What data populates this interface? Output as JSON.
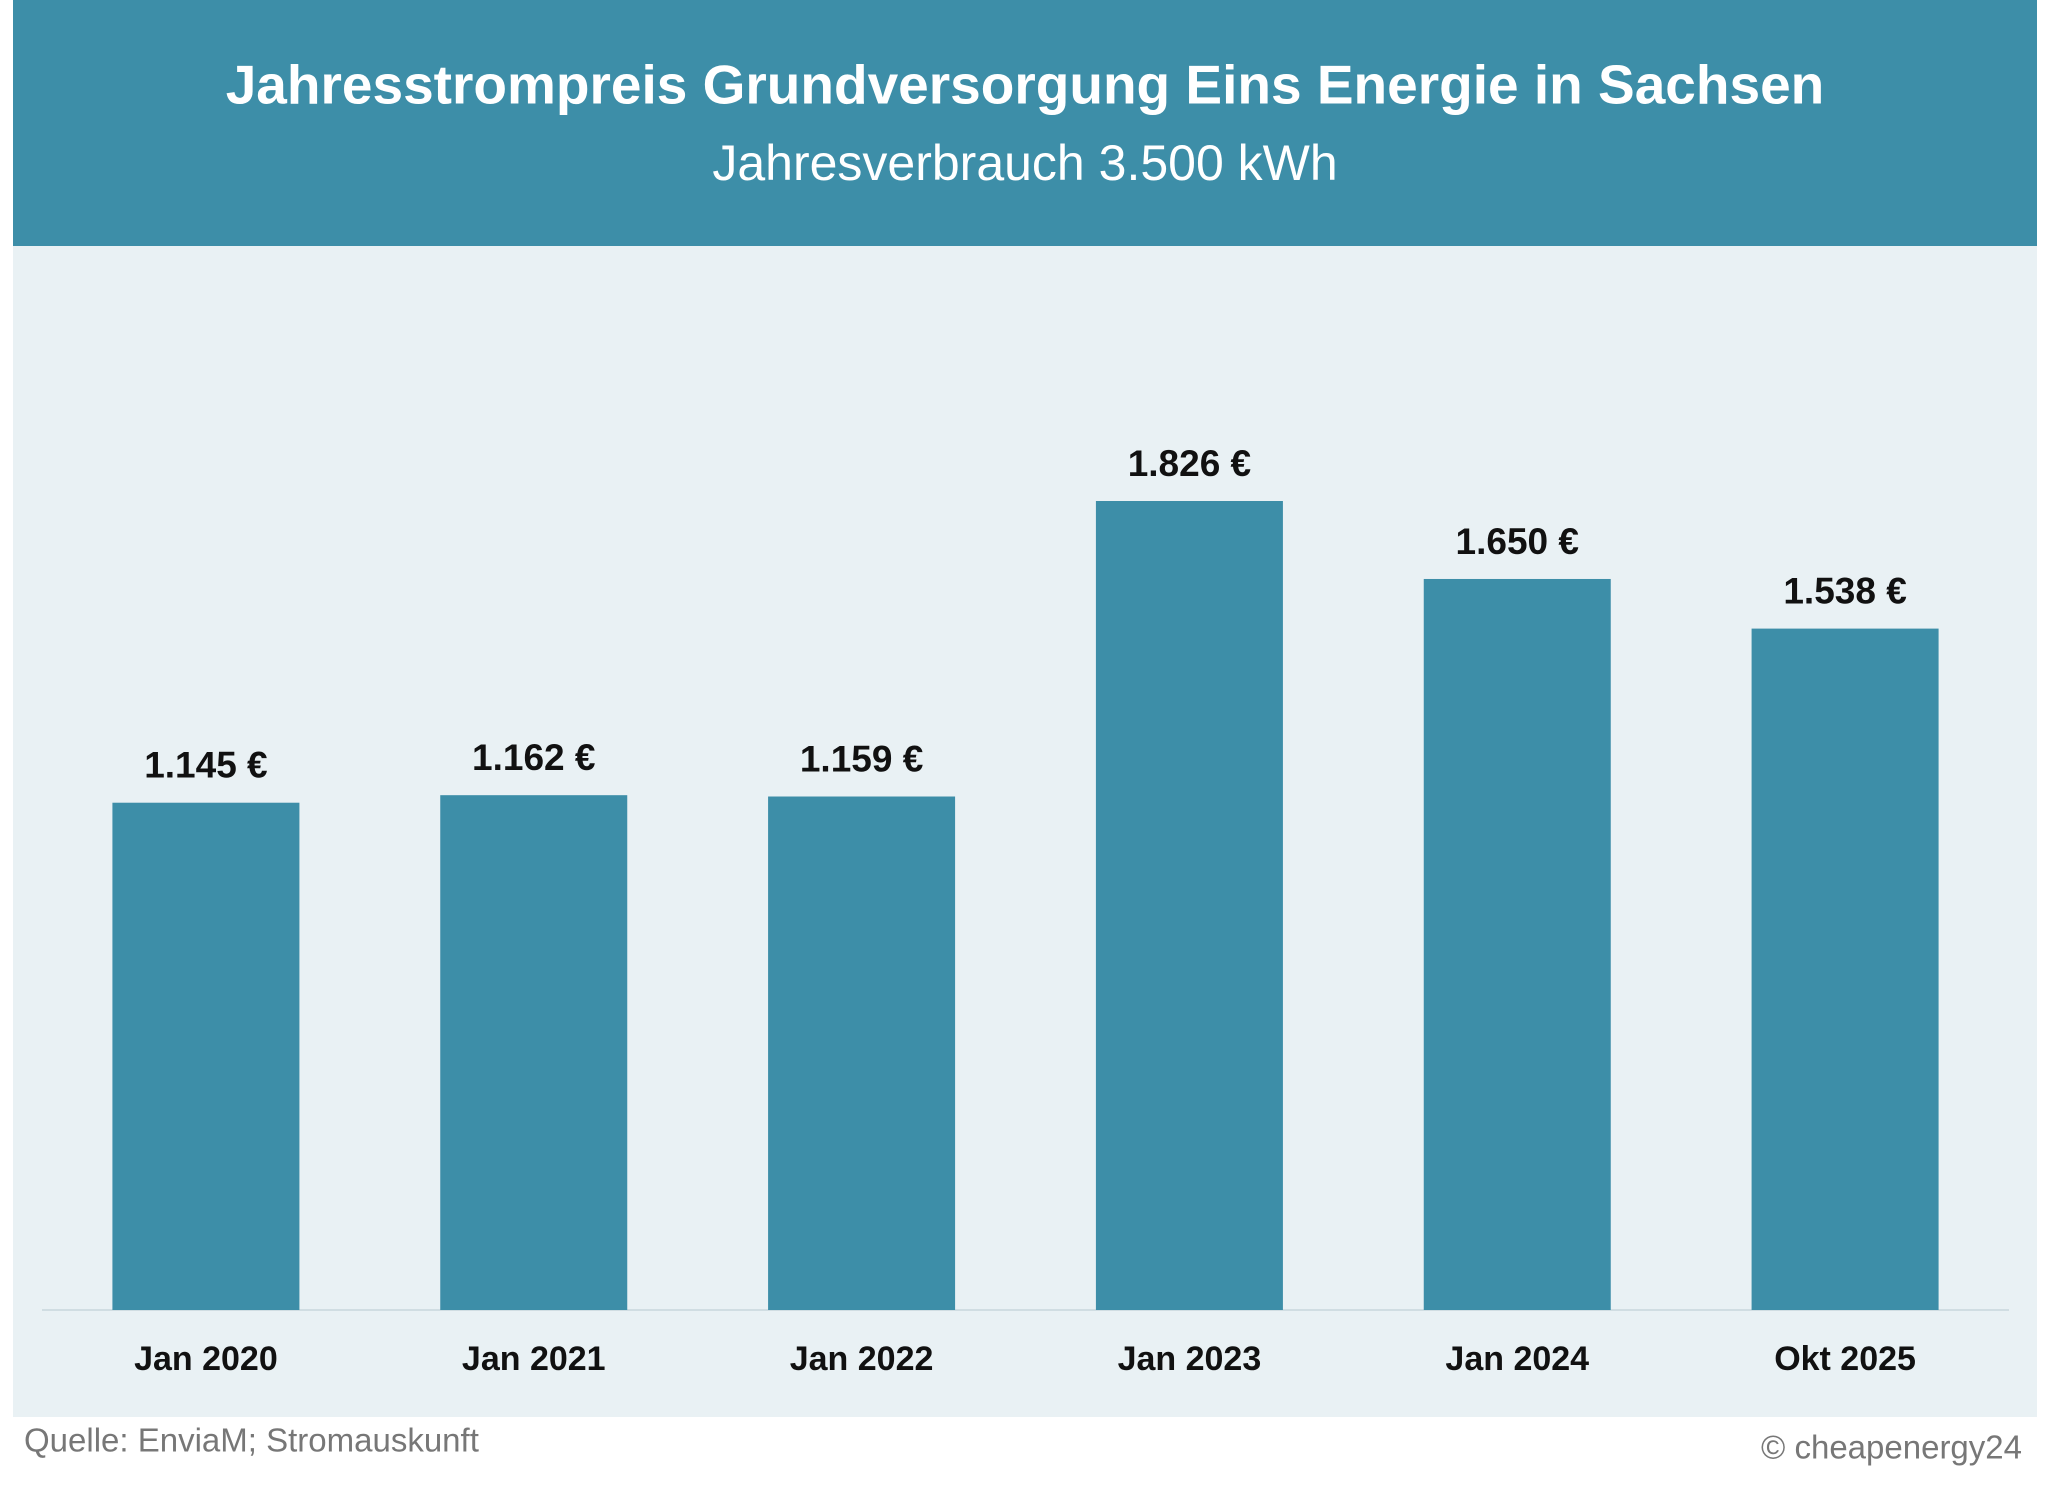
{
  "chart_data": {
    "type": "bar",
    "title": "Jahresstrompreis Grundversorgung Eins Energie in Sachsen",
    "subtitle": "Jahresverbrauch 3.500 kWh",
    "categories": [
      "Jan 2020",
      "Jan 2021",
      "Jan 2022",
      "Jan 2023",
      "Jan 2024",
      "Okt 2025"
    ],
    "values": [
      1145,
      1162,
      1159,
      1826,
      1650,
      1538
    ],
    "value_labels": [
      "1.145 €",
      "1.162 €",
      "1.159 €",
      "1.826 €",
      "1.650 €",
      "1.538 €"
    ],
    "color": "#3d8ea8",
    "source": "Quelle: EnviaM; Stromauskunft",
    "credit": "© cheapenergy24"
  }
}
